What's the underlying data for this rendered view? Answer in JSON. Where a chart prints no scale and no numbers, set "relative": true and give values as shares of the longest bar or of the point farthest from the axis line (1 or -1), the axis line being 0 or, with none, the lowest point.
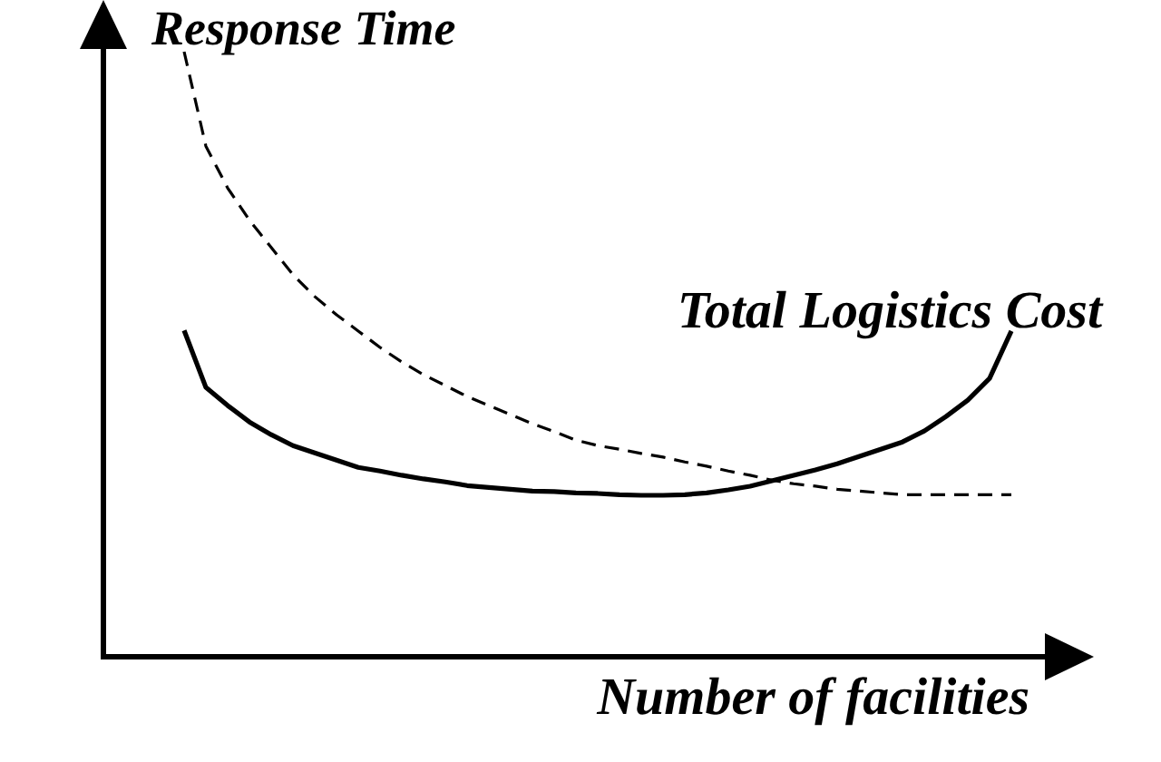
{
  "chart_data": {
    "type": "line",
    "relative": true,
    "xlabel": "Number of facilities",
    "ylabel": "Response Time",
    "categories": [
      null,
      null,
      null,
      null,
      null,
      null,
      null,
      null,
      null,
      null,
      null,
      null,
      null,
      null,
      null,
      null,
      null,
      null,
      null,
      null,
      null,
      null,
      null,
      null,
      null,
      null,
      null,
      null,
      null,
      null,
      null,
      null,
      null,
      null,
      null,
      null,
      null,
      null,
      null
    ],
    "series": [
      {
        "color": "#000000",
        "line_style": "dashed",
        "values": [
          1.0,
          0.844,
          0.775,
          0.722,
          0.677,
          0.632,
          0.596,
          0.566,
          0.539,
          0.512,
          0.488,
          0.467,
          0.449,
          0.431,
          0.416,
          0.401,
          0.386,
          0.373,
          0.359,
          0.35,
          0.344,
          0.337,
          0.331,
          0.323,
          0.316,
          0.308,
          0.301,
          0.293,
          0.287,
          0.283,
          0.278,
          0.275,
          0.272,
          0.269,
          0.269,
          0.269,
          0.269,
          0.269,
          0.269
        ]
      },
      {
        "name": "Total Logistics Cost",
        "color": "#000000",
        "line_style": "solid",
        "values": [
          0.54,
          0.446,
          0.416,
          0.389,
          0.368,
          0.35,
          0.338,
          0.326,
          0.314,
          0.308,
          0.301,
          0.295,
          0.29,
          0.284,
          0.281,
          0.278,
          0.275,
          0.274,
          0.272,
          0.271,
          0.269,
          0.268,
          0.268,
          0.269,
          0.272,
          0.277,
          0.283,
          0.292,
          0.301,
          0.31,
          0.32,
          0.332,
          0.344,
          0.356,
          0.374,
          0.398,
          0.425,
          0.461,
          0.539
        ]
      }
    ]
  }
}
